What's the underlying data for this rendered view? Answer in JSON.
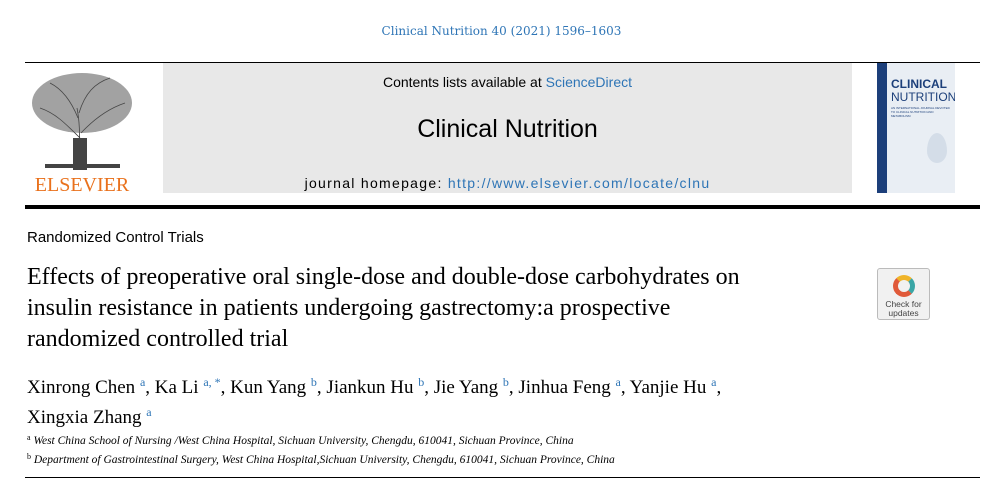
{
  "citation": "Clinical Nutrition 40 (2021) 1596–1603",
  "masthead": {
    "contents_prefix": "Contents lists available at ",
    "contents_link": "ScienceDirect",
    "journal_name": "Clinical Nutrition",
    "homepage_prefix": "journal homepage: ",
    "homepage_url": "http://www.elsevier.com/locate/clnu",
    "publisher": "ELSEVIER"
  },
  "cover": {
    "line1": "CLINICAL",
    "line2": "NUTRITION",
    "subtitle": "AN INTERNATIONAL JOURNAL DEVOTED TO CLINICAL NUTRITION AND METABOLISM",
    "colors": {
      "spine": "#1c3f7a",
      "title": "#1c3f7a"
    }
  },
  "check_updates": {
    "line1": "Check for",
    "line2": "updates"
  },
  "article": {
    "section": "Randomized Control Trials",
    "title": "Effects of preoperative oral single-dose and double-dose carbohydrates on insulin resistance in patients undergoing gastrectomy:a prospective randomized controlled trial",
    "authors": [
      {
        "name": "Xinrong Chen",
        "aff": "a"
      },
      {
        "name": "Ka Li",
        "aff": "a, *"
      },
      {
        "name": "Kun Yang",
        "aff": "b"
      },
      {
        "name": "Jiankun Hu",
        "aff": "b"
      },
      {
        "name": "Jie Yang",
        "aff": "b"
      },
      {
        "name": "Jinhua Feng",
        "aff": "a"
      },
      {
        "name": "Yanjie Hu",
        "aff": "a"
      },
      {
        "name": "Xingxia Zhang",
        "aff": "a"
      }
    ],
    "affiliations": [
      {
        "key": "a",
        "text": "West China School of Nursing /West China Hospital, Sichuan University, Chengdu, 610041, Sichuan Province, China"
      },
      {
        "key": "b",
        "text": "Department of Gastrointestinal Surgery, West China Hospital,Sichuan University, Chengdu, 610041, Sichuan Province, China"
      }
    ]
  },
  "colors": {
    "link": "#2e75b6",
    "elsevier_orange": "#e9711c"
  }
}
